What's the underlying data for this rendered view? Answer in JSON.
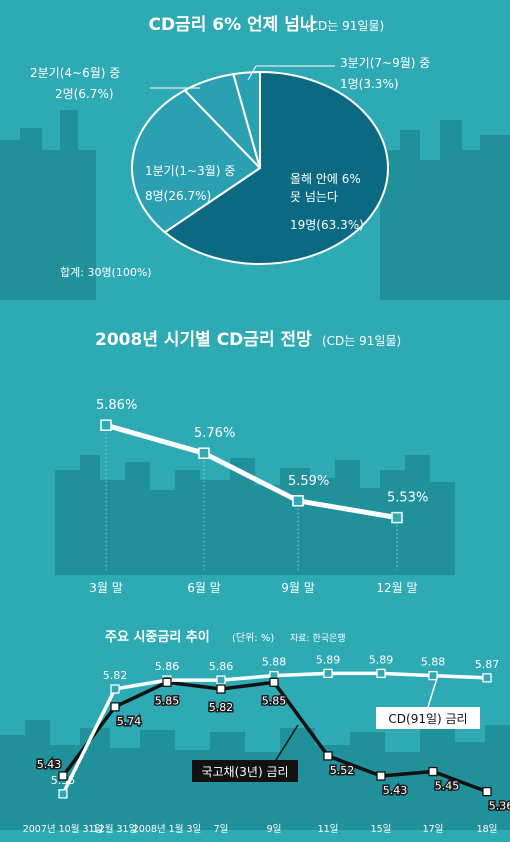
{
  "panels": {
    "pie": {
      "title": "CD금리 6% 언제 넘나",
      "note": "(CD는 91일물)",
      "total": "합계: 30명(100%)",
      "slice_labels": [
        {
          "lines": [
            "올해 안에 6%",
            "못 넘는다",
            "19명(63.3%)"
          ]
        },
        {
          "lines": [
            "1분기(1~3월) 중",
            "8명(26.7%)"
          ]
        },
        {
          "lines": [
            "2분기(4~6월) 중",
            "2명(6.7%)"
          ]
        },
        {
          "lines": [
            "3분기(7~9월) 중",
            "1명(3.3%)"
          ]
        }
      ]
    },
    "outlook": {
      "title": "2008년 시기별 CD금리 전망",
      "note": "(CD는 91일물)"
    },
    "rates": {
      "title": "주요 시중금리 추이",
      "unit": "(단위: %)",
      "source": "자료: 한국은행"
    }
  },
  "chart_data": [
    {
      "type": "pie",
      "title": "CD금리 6% 언제 넘나",
      "subtitle": "(CD는 91일물)",
      "slices": [
        {
          "label": "올해 안에 6% 못 넘는다",
          "count": 19,
          "percent": 63.3
        },
        {
          "label": "1분기(1~3월) 중",
          "count": 8,
          "percent": 26.7
        },
        {
          "label": "2분기(4~6월) 중",
          "count": 2,
          "percent": 6.7
        },
        {
          "label": "3분기(7~9월) 중",
          "count": 1,
          "percent": 3.3
        }
      ],
      "total": "합계: 30명(100%)",
      "colors": {
        "main": "#0b6a81",
        "other": "#2aa0b2",
        "outline": "#ffffff"
      }
    },
    {
      "type": "line",
      "title": "2008년 시기별 CD금리 전망",
      "subtitle": "(CD는 91일물)",
      "categories": [
        "3월 말",
        "6월 말",
        "9월 말",
        "12월 말"
      ],
      "values": [
        5.86,
        5.76,
        5.59,
        5.53
      ],
      "labels": [
        "5.86%",
        "5.76%",
        "5.59%",
        "5.53%"
      ],
      "ylim": [
        5.45,
        5.95
      ],
      "grid": false
    },
    {
      "type": "line",
      "title": "주요 시중금리 추이",
      "unit": "(단위: %)",
      "source": "자료: 한국은행",
      "categories": [
        "2007년 10월 31일",
        "12월 31일",
        "2008년 1월 3일",
        "7일",
        "9일",
        "11일",
        "15일",
        "17일",
        "18일"
      ],
      "series": [
        {
          "name": "CD(91일) 금리",
          "values": [
            5.35,
            5.82,
            5.86,
            5.86,
            5.88,
            5.89,
            5.89,
            5.88,
            5.87
          ],
          "color": "#ffffff"
        },
        {
          "name": "국고채(3년) 금리",
          "values": [
            5.43,
            5.74,
            5.85,
            5.82,
            5.85,
            5.52,
            5.43,
            5.45,
            5.36
          ],
          "color": "#111111"
        }
      ],
      "ylim": [
        5.3,
        5.95
      ],
      "grid": false
    }
  ]
}
